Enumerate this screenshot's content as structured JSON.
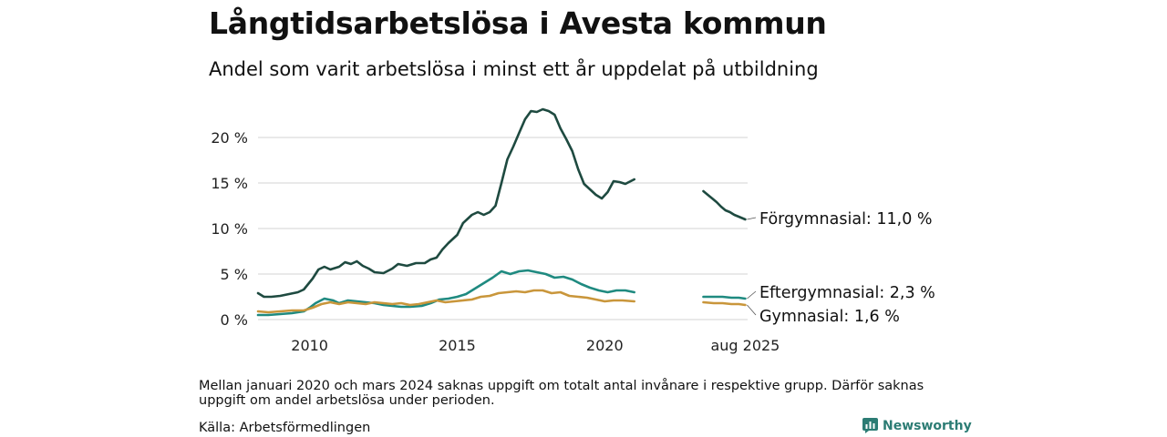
{
  "title": "Långtidsarbetslösa i Avesta kommun",
  "subtitle": "Andel som varit arbetslösa i minst ett år uppdelat på utbildning",
  "footnote": "Mellan januari 2020 och mars 2024 saknas uppgift om totalt antal invånare i respektive grupp. Därför saknas uppgift om andel arbetslösa under perioden.",
  "source": "Källa: Arbetsförmedlingen",
  "brand": {
    "name": "Newsworthy",
    "icon": "bar-chart-logo-icon",
    "color": "#2c7c74"
  },
  "chart_data": {
    "type": "line",
    "x_axis": {
      "ticks": [
        {
          "x": 2010,
          "label": "2010"
        },
        {
          "x": 2015,
          "label": "2015"
        },
        {
          "x": 2020,
          "label": "2020"
        },
        {
          "x": 2025.67,
          "label": "aug 2025"
        }
      ],
      "axis_gap": [
        2021.0,
        2023.7
      ],
      "range": [
        2008.25,
        2025.75
      ]
    },
    "y_axis": {
      "range": [
        0,
        23.5
      ],
      "ticks": [
        {
          "y": 0,
          "label": "0 %"
        },
        {
          "y": 5,
          "label": "5 %"
        },
        {
          "y": 10,
          "label": "10 %"
        },
        {
          "y": 15,
          "label": "15 %"
        },
        {
          "y": 20,
          "label": "20 %"
        }
      ]
    },
    "grid": true,
    "legend": "end-labels",
    "series": [
      {
        "name": "Förgymnasial",
        "end_value_label": "11,0 %",
        "color": "#1e4a40",
        "segments": [
          [
            [
              2008.25,
              2.9
            ],
            [
              2008.45,
              2.5
            ],
            [
              2008.7,
              2.5
            ],
            [
              2009.0,
              2.6
            ],
            [
              2009.3,
              2.8
            ],
            [
              2009.6,
              3.0
            ],
            [
              2009.8,
              3.3
            ],
            [
              2010.1,
              4.5
            ],
            [
              2010.3,
              5.5
            ],
            [
              2010.5,
              5.8
            ],
            [
              2010.7,
              5.5
            ],
            [
              2011.0,
              5.8
            ],
            [
              2011.2,
              6.3
            ],
            [
              2011.4,
              6.1
            ],
            [
              2011.6,
              6.4
            ],
            [
              2011.8,
              5.9
            ],
            [
              2012.0,
              5.6
            ],
            [
              2012.2,
              5.2
            ],
            [
              2012.5,
              5.1
            ],
            [
              2012.8,
              5.6
            ],
            [
              2013.0,
              6.1
            ],
            [
              2013.3,
              5.9
            ],
            [
              2013.6,
              6.2
            ],
            [
              2013.9,
              6.2
            ],
            [
              2014.1,
              6.6
            ],
            [
              2014.3,
              6.8
            ],
            [
              2014.5,
              7.7
            ],
            [
              2014.7,
              8.4
            ],
            [
              2015.0,
              9.3
            ],
            [
              2015.2,
              10.6
            ],
            [
              2015.5,
              11.5
            ],
            [
              2015.7,
              11.8
            ],
            [
              2015.9,
              11.5
            ],
            [
              2016.1,
              11.8
            ],
            [
              2016.3,
              12.5
            ],
            [
              2016.5,
              15.0
            ],
            [
              2016.7,
              17.6
            ],
            [
              2016.9,
              19.0
            ],
            [
              2017.1,
              20.5
            ],
            [
              2017.3,
              22.0
            ],
            [
              2017.5,
              22.9
            ],
            [
              2017.7,
              22.8
            ],
            [
              2017.9,
              23.1
            ],
            [
              2018.1,
              22.9
            ],
            [
              2018.3,
              22.5
            ],
            [
              2018.5,
              21.0
            ],
            [
              2018.7,
              19.8
            ],
            [
              2018.9,
              18.5
            ],
            [
              2019.1,
              16.5
            ],
            [
              2019.3,
              14.9
            ],
            [
              2019.5,
              14.3
            ],
            [
              2019.7,
              13.7
            ],
            [
              2019.9,
              13.3
            ],
            [
              2020.1,
              14.0
            ],
            [
              2020.3,
              15.2
            ],
            [
              2020.5,
              15.1
            ],
            [
              2020.7,
              14.9
            ],
            [
              2021.0,
              15.4
            ]
          ],
          [
            [
              2024.25,
              14.1
            ],
            [
              2024.4,
              13.7
            ],
            [
              2024.55,
              13.3
            ],
            [
              2024.7,
              12.9
            ],
            [
              2024.85,
              12.4
            ],
            [
              2025.0,
              12.0
            ],
            [
              2025.15,
              11.8
            ],
            [
              2025.3,
              11.5
            ],
            [
              2025.45,
              11.3
            ],
            [
              2025.67,
              11.0
            ]
          ]
        ]
      },
      {
        "name": "Eftergymnasial",
        "end_value_label": "2,3 %",
        "color": "#1f8a80",
        "segments": [
          [
            [
              2008.25,
              0.5
            ],
            [
              2008.6,
              0.5
            ],
            [
              2009.0,
              0.6
            ],
            [
              2009.4,
              0.7
            ],
            [
              2009.8,
              0.9
            ],
            [
              2010.0,
              1.3
            ],
            [
              2010.2,
              1.8
            ],
            [
              2010.5,
              2.3
            ],
            [
              2010.8,
              2.1
            ],
            [
              2011.0,
              1.8
            ],
            [
              2011.3,
              2.1
            ],
            [
              2011.6,
              2.0
            ],
            [
              2011.9,
              1.9
            ],
            [
              2012.2,
              1.8
            ],
            [
              2012.5,
              1.6
            ],
            [
              2012.8,
              1.5
            ],
            [
              2013.1,
              1.4
            ],
            [
              2013.4,
              1.4
            ],
            [
              2013.8,
              1.5
            ],
            [
              2014.1,
              1.8
            ],
            [
              2014.4,
              2.2
            ],
            [
              2014.7,
              2.3
            ],
            [
              2015.0,
              2.5
            ],
            [
              2015.3,
              2.8
            ],
            [
              2015.6,
              3.4
            ],
            [
              2015.9,
              4.0
            ],
            [
              2016.2,
              4.6
            ],
            [
              2016.5,
              5.3
            ],
            [
              2016.8,
              5.0
            ],
            [
              2017.1,
              5.3
            ],
            [
              2017.4,
              5.4
            ],
            [
              2017.7,
              5.2
            ],
            [
              2018.0,
              5.0
            ],
            [
              2018.3,
              4.6
            ],
            [
              2018.6,
              4.7
            ],
            [
              2018.9,
              4.4
            ],
            [
              2019.2,
              3.9
            ],
            [
              2019.5,
              3.5
            ],
            [
              2019.8,
              3.2
            ],
            [
              2020.1,
              3.0
            ],
            [
              2020.4,
              3.2
            ],
            [
              2020.7,
              3.2
            ],
            [
              2021.0,
              3.0
            ]
          ],
          [
            [
              2024.25,
              2.5
            ],
            [
              2024.6,
              2.5
            ],
            [
              2024.9,
              2.5
            ],
            [
              2025.2,
              2.4
            ],
            [
              2025.45,
              2.4
            ],
            [
              2025.67,
              2.3
            ]
          ]
        ]
      },
      {
        "name": "Gymnasial",
        "end_value_label": "1,6 %",
        "color": "#c9963b",
        "segments": [
          [
            [
              2008.25,
              0.9
            ],
            [
              2008.6,
              0.8
            ],
            [
              2009.0,
              0.9
            ],
            [
              2009.4,
              1.0
            ],
            [
              2009.8,
              1.0
            ],
            [
              2010.1,
              1.3
            ],
            [
              2010.4,
              1.7
            ],
            [
              2010.7,
              1.9
            ],
            [
              2011.0,
              1.7
            ],
            [
              2011.3,
              1.9
            ],
            [
              2011.6,
              1.8
            ],
            [
              2011.9,
              1.7
            ],
            [
              2012.2,
              1.9
            ],
            [
              2012.5,
              1.8
            ],
            [
              2012.8,
              1.7
            ],
            [
              2013.1,
              1.8
            ],
            [
              2013.4,
              1.6
            ],
            [
              2013.7,
              1.7
            ],
            [
              2014.0,
              1.9
            ],
            [
              2014.3,
              2.1
            ],
            [
              2014.6,
              1.9
            ],
            [
              2014.9,
              2.0
            ],
            [
              2015.2,
              2.1
            ],
            [
              2015.5,
              2.2
            ],
            [
              2015.8,
              2.5
            ],
            [
              2016.1,
              2.6
            ],
            [
              2016.4,
              2.9
            ],
            [
              2016.7,
              3.0
            ],
            [
              2017.0,
              3.1
            ],
            [
              2017.3,
              3.0
            ],
            [
              2017.6,
              3.2
            ],
            [
              2017.9,
              3.2
            ],
            [
              2018.2,
              2.9
            ],
            [
              2018.5,
              3.0
            ],
            [
              2018.8,
              2.6
            ],
            [
              2019.1,
              2.5
            ],
            [
              2019.4,
              2.4
            ],
            [
              2019.7,
              2.2
            ],
            [
              2020.0,
              2.0
            ],
            [
              2020.3,
              2.1
            ],
            [
              2020.6,
              2.1
            ],
            [
              2021.0,
              2.0
            ]
          ],
          [
            [
              2024.25,
              1.9
            ],
            [
              2024.6,
              1.8
            ],
            [
              2024.9,
              1.8
            ],
            [
              2025.2,
              1.7
            ],
            [
              2025.45,
              1.7
            ],
            [
              2025.67,
              1.6
            ]
          ]
        ]
      }
    ]
  }
}
